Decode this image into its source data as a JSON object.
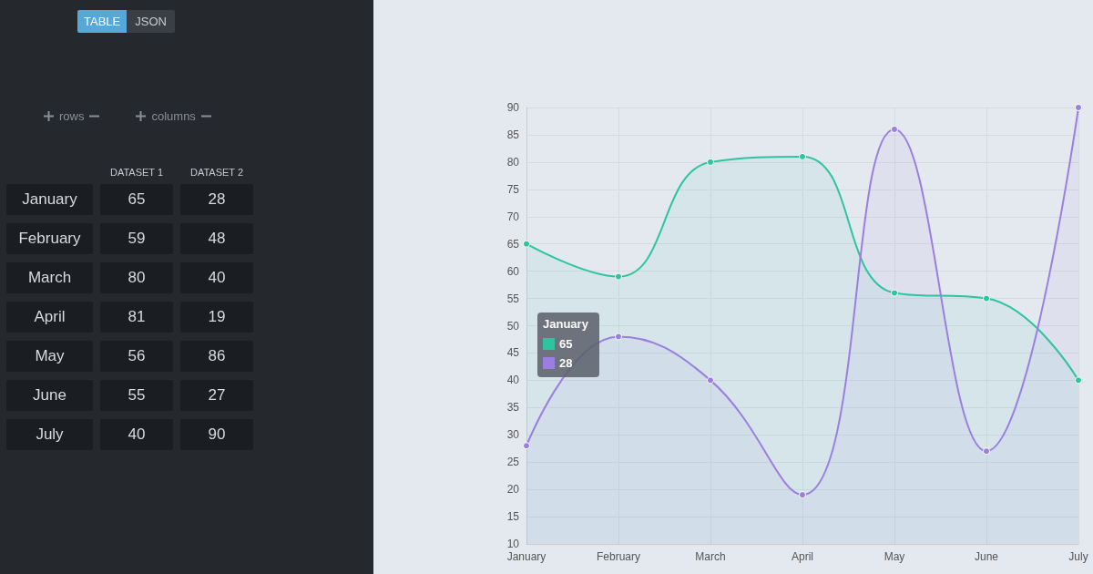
{
  "chart_data": [
    {
      "type": "other",
      "annotations": [
        "TABLE",
        "JSON",
        "rows",
        "columns",
        "DATASET 1",
        "DATASET 2",
        "January",
        "65",
        "28",
        "February",
        "59",
        "48",
        "March",
        "80",
        "40",
        "April",
        "81",
        "19",
        "May",
        "56",
        "86",
        "June",
        "55",
        "27",
        "July",
        "40",
        "90"
      ]
    },
    {
      "type": "area",
      "categories": [
        "January",
        "February",
        "March",
        "April",
        "May",
        "June",
        "July"
      ],
      "series": [
        {
          "color": "#2ec4a0",
          "values": [
            65,
            59,
            80,
            81,
            56,
            55,
            40
          ]
        },
        {
          "color": "#9b7fe0",
          "values": [
            28,
            48,
            40,
            19,
            86,
            27,
            90
          ]
        }
      ],
      "ylim": [
        10,
        90
      ],
      "yticks": [
        10,
        15,
        20,
        25,
        30,
        35,
        40,
        45,
        50,
        55,
        60,
        65,
        70,
        75,
        80,
        85,
        90
      ],
      "grid": true,
      "marker": "circle",
      "annotations": [
        "January",
        "65",
        "28"
      ]
    }
  ]
}
